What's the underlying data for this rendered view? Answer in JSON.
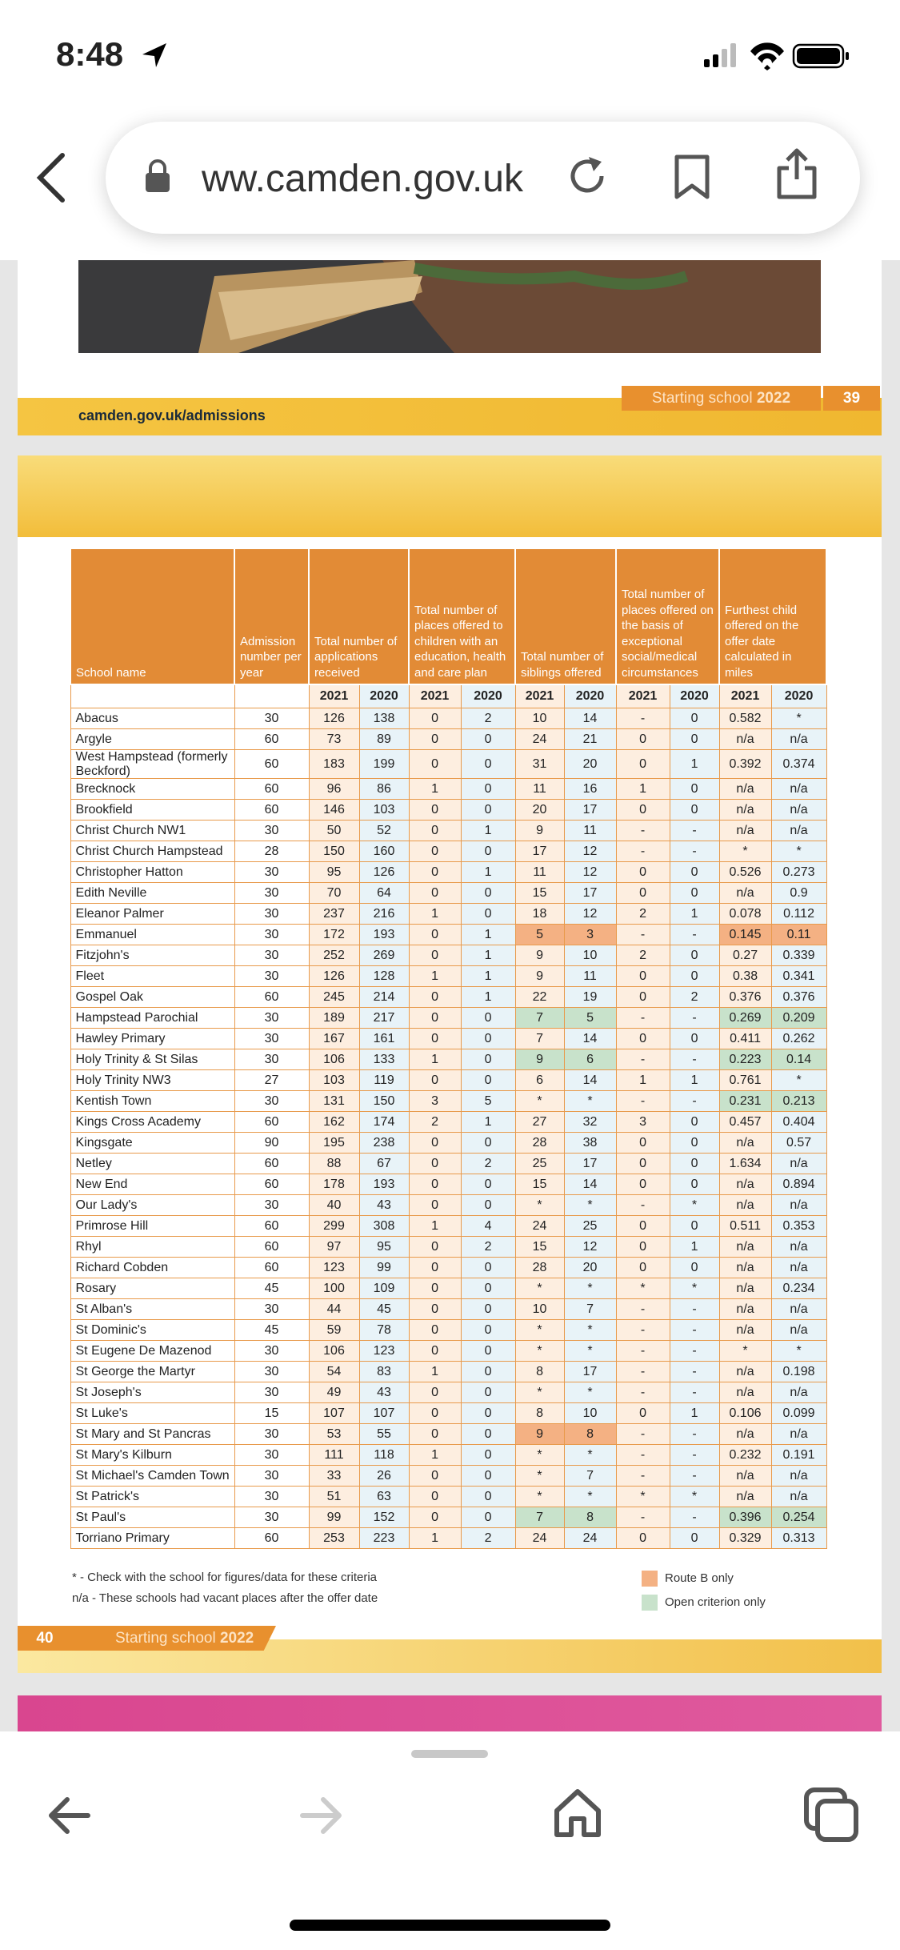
{
  "status_bar": {
    "time": "8:48"
  },
  "browser": {
    "url": "ww.camden.gov.uk"
  },
  "page_39": {
    "link": "camden.gov.uk/admissions",
    "section": "Starting school",
    "year": "2022",
    "page_number": 39
  },
  "page_40": {
    "table": {
      "headers": [
        "School name",
        "Admission number per year",
        "Total number of applications received",
        "Total number of places offered to children with an education, health and care plan",
        "Total number of siblings offered",
        "Total number of places offered on the basis of exceptional social/medical circumstances",
        "Furthest child offered on the offer date calculated in miles"
      ],
      "years": [
        2021,
        2020
      ],
      "rows": [
        [
          "Abacus",
          30,
          126,
          138,
          0,
          2,
          10,
          14,
          "-",
          0,
          0.582,
          "*"
        ],
        [
          "Argyle",
          60,
          73,
          89,
          0,
          0,
          24,
          21,
          0,
          0,
          "n/a",
          "n/a"
        ],
        [
          "West Hampstead (formerly Beckford)",
          60,
          183,
          199,
          0,
          0,
          31,
          20,
          0,
          1,
          0.392,
          0.374
        ],
        [
          "Brecknock",
          60,
          96,
          86,
          1,
          0,
          11,
          16,
          1,
          0,
          "n/a",
          "n/a"
        ],
        [
          "Brookfield",
          60,
          146,
          103,
          0,
          0,
          20,
          17,
          0,
          0,
          "n/a",
          "n/a"
        ],
        [
          "Christ Church NW1",
          30,
          50,
          52,
          0,
          1,
          9,
          11,
          "-",
          "-",
          "n/a",
          "n/a"
        ],
        [
          "Christ Church Hampstead",
          28,
          150,
          160,
          0,
          0,
          17,
          12,
          "-",
          "-",
          "*",
          "*"
        ],
        [
          "Christopher Hatton",
          30,
          95,
          126,
          0,
          1,
          11,
          12,
          0,
          0,
          0.526,
          0.273
        ],
        [
          "Edith Neville",
          30,
          70,
          64,
          0,
          0,
          15,
          17,
          0,
          0,
          "n/a",
          0.9
        ],
        [
          "Eleanor Palmer",
          30,
          237,
          216,
          1,
          0,
          18,
          12,
          2,
          1,
          0.078,
          0.112
        ],
        [
          "Emmanuel",
          30,
          172,
          193,
          0,
          1,
          5,
          3,
          "-",
          "-",
          0.145,
          0.11
        ],
        [
          "Fitzjohn's",
          30,
          252,
          269,
          0,
          1,
          9,
          10,
          2,
          0,
          0.27,
          0.339
        ],
        [
          "Fleet",
          30,
          126,
          128,
          1,
          1,
          9,
          11,
          0,
          0,
          0.38,
          0.341
        ],
        [
          "Gospel Oak",
          60,
          245,
          214,
          0,
          1,
          22,
          19,
          0,
          2,
          0.376,
          0.376
        ],
        [
          "Hampstead Parochial",
          30,
          189,
          217,
          0,
          0,
          7,
          5,
          "-",
          "-",
          0.269,
          0.209
        ],
        [
          "Hawley Primary",
          30,
          167,
          161,
          0,
          0,
          7,
          14,
          0,
          0,
          0.411,
          0.262
        ],
        [
          "Holy Trinity & St Silas",
          30,
          106,
          133,
          1,
          0,
          9,
          6,
          "-",
          "-",
          0.223,
          0.14
        ],
        [
          "Holy Trinity NW3",
          27,
          103,
          119,
          0,
          0,
          6,
          14,
          1,
          1,
          0.761,
          "*"
        ],
        [
          "Kentish Town",
          30,
          131,
          150,
          3,
          5,
          "*",
          "*",
          "-",
          "-",
          0.231,
          0.213
        ],
        [
          "Kings Cross Academy",
          60,
          162,
          174,
          2,
          1,
          27,
          32,
          3,
          0,
          0.457,
          0.404
        ],
        [
          "Kingsgate",
          90,
          195,
          238,
          0,
          0,
          28,
          38,
          0,
          0,
          "n/a",
          0.57
        ],
        [
          "Netley",
          60,
          88,
          67,
          0,
          2,
          25,
          17,
          0,
          0,
          1.634,
          "n/a"
        ],
        [
          "New End",
          60,
          178,
          193,
          0,
          0,
          15,
          14,
          0,
          0,
          "n/a",
          0.894
        ],
        [
          "Our Lady's",
          30,
          40,
          43,
          0,
          0,
          "*",
          "*",
          "-",
          "*",
          "n/a",
          "n/a"
        ],
        [
          "Primrose Hill",
          60,
          299,
          308,
          1,
          4,
          24,
          25,
          0,
          0,
          0.511,
          0.353
        ],
        [
          "Rhyl",
          60,
          97,
          95,
          0,
          2,
          15,
          12,
          0,
          1,
          "n/a",
          "n/a"
        ],
        [
          "Richard Cobden",
          60,
          123,
          99,
          0,
          0,
          28,
          20,
          0,
          0,
          "n/a",
          "n/a"
        ],
        [
          "Rosary",
          45,
          100,
          109,
          0,
          0,
          "*",
          "*",
          "*",
          "*",
          "n/a",
          0.234
        ],
        [
          "St Alban's",
          30,
          44,
          45,
          0,
          0,
          10,
          7,
          "-",
          "-",
          "n/a",
          "n/a"
        ],
        [
          "St Dominic's",
          45,
          59,
          78,
          0,
          0,
          "*",
          "*",
          "-",
          "-",
          "n/a",
          "n/a"
        ],
        [
          "St Eugene De Mazenod",
          30,
          106,
          123,
          0,
          0,
          "*",
          "*",
          "-",
          "-",
          "*",
          "*"
        ],
        [
          "St George the Martyr",
          30,
          54,
          83,
          1,
          0,
          8,
          17,
          "-",
          "-",
          "n/a",
          0.198
        ],
        [
          "St Joseph's",
          30,
          49,
          43,
          0,
          0,
          "*",
          "*",
          "-",
          "-",
          "n/a",
          "n/a"
        ],
        [
          "St Luke's",
          15,
          107,
          107,
          0,
          0,
          8,
          10,
          0,
          1,
          0.106,
          0.099
        ],
        [
          "St Mary and St Pancras",
          30,
          53,
          55,
          0,
          0,
          9,
          8,
          "-",
          "-",
          "n/a",
          "n/a"
        ],
        [
          "St Mary's Kilburn",
          30,
          111,
          118,
          1,
          0,
          "*",
          "*",
          "-",
          "-",
          0.232,
          0.191
        ],
        [
          "St Michael's Camden Town",
          30,
          33,
          26,
          0,
          0,
          "*",
          7,
          "-",
          "-",
          "n/a",
          "n/a"
        ],
        [
          "St Patrick's",
          30,
          51,
          63,
          0,
          0,
          "*",
          "*",
          "*",
          "*",
          "n/a",
          "n/a"
        ],
        [
          "St Paul's",
          30,
          99,
          152,
          0,
          0,
          7,
          8,
          "-",
          "-",
          0.396,
          0.254
        ],
        [
          "Torriano Primary",
          60,
          253,
          223,
          1,
          2,
          24,
          24,
          0,
          0,
          0.329,
          0.313
        ]
      ],
      "shaded_cells": [
        {
          "row": 10,
          "columns": [
            6,
            7,
            10,
            11
          ],
          "legend": 0
        },
        {
          "row": 14,
          "columns": [
            6,
            7,
            10,
            11
          ],
          "legend": 1
        },
        {
          "row": 16,
          "columns": [
            6,
            7,
            10,
            11
          ],
          "legend": 1
        },
        {
          "row": 18,
          "columns": [
            10,
            11
          ],
          "legend": 1
        },
        {
          "row": 34,
          "columns": [
            6,
            7
          ],
          "legend": 0
        },
        {
          "row": 38,
          "columns": [
            6,
            7,
            10,
            11
          ],
          "legend": 1
        }
      ]
    },
    "notes": [
      "* - Check with the school for figures/data for these criteria",
      "n/a - These schools had vacant places after the offer date"
    ],
    "legend": [
      {
        "label": "Route B only",
        "color": "#f4b183"
      },
      {
        "label": "Open criterion only",
        "color": "#c8e2cb"
      }
    ],
    "page_number": 40,
    "section": "Starting school",
    "year": "2022"
  }
}
